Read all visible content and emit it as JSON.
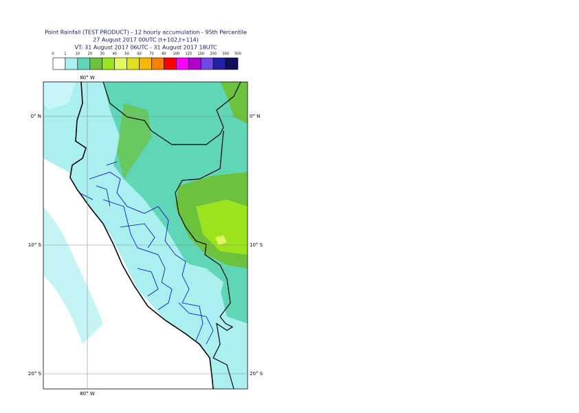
{
  "header": {
    "lines": [
      "Point Rainfall (TEST PRODUCT) - 12 hourly accumulation - 95th Percentile",
      "27 August 2017 00UTC (t+102,t+114)",
      "VT: 31 August 2017 06UTC - 31 August 2017 18UTC"
    ]
  },
  "legend": {
    "labels": [
      "0",
      "1",
      "10",
      "20",
      "30",
      "40",
      "50",
      "60",
      "70",
      "80",
      "100",
      "125",
      "150",
      "200",
      "300",
      "500"
    ],
    "colors": [
      "#ffffff",
      "#aaf0f0",
      "#5fd6b6",
      "#6cc23c",
      "#9ee41e",
      "#e2f660",
      "#e0e020",
      "#f8b800",
      "#f88000",
      "#ff0000",
      "#ff00ff",
      "#b000d0",
      "#7048e8",
      "#2020a8",
      "#101058"
    ]
  },
  "map": {
    "top_labels": [
      "80° W"
    ],
    "bottom_labels": [
      "80° W"
    ],
    "left_labels": [
      "0° N",
      "10° S",
      "20° S"
    ],
    "right_labels": [
      "0° N",
      "10° S",
      "20° S"
    ]
  }
}
